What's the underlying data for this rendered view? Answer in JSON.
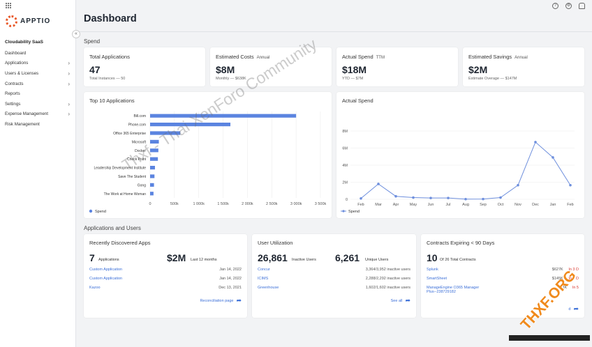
{
  "brand": {
    "name": "APPTIO",
    "workspace": "Cloudability SaaS"
  },
  "sidebar": {
    "items": [
      {
        "label": "Dashboard",
        "active": true,
        "chevron": false
      },
      {
        "label": "Applications",
        "chevron": true
      },
      {
        "label": "Users & Licenses",
        "chevron": true
      },
      {
        "label": "Contracts",
        "chevron": true
      },
      {
        "label": "Reports",
        "chevron": false
      },
      {
        "label": "Settings",
        "chevron": true
      },
      {
        "label": "Expense Management",
        "chevron": true
      },
      {
        "label": "Risk Management",
        "chevron": false
      }
    ]
  },
  "header": {
    "title": "Dashboard",
    "icons": [
      "help-icon",
      "settings-icon",
      "user-icon"
    ]
  },
  "spend": {
    "section_title": "Spend",
    "kpis": [
      {
        "title": "Total Applications",
        "tag": "",
        "value": "47",
        "sub": "Total Instances — 50"
      },
      {
        "title": "Estimated Costs",
        "tag": "Annual",
        "value": "$8M",
        "sub": "Monthly — $638K"
      },
      {
        "title": "Actual Spend",
        "tag": "TTM",
        "value": "$18M",
        "sub": "YTD — $7M"
      },
      {
        "title": "Estimated Savings",
        "tag": "Annual",
        "value": "$2M",
        "sub": "Estimate Overage — $147M"
      }
    ]
  },
  "top10": {
    "title": "Top 10 Applications",
    "legend": "Spend"
  },
  "actual_spend": {
    "title": "Actual Spend",
    "legend": "Spend"
  },
  "chart_data": [
    {
      "type": "bar",
      "orientation": "horizontal",
      "title": "Top 10 Applications",
      "categories": [
        "Bill.com",
        "Phone.com",
        "Office 365 Enterprise",
        "Microsoft",
        "Docker",
        "Check Point",
        "Leadership Development Institute",
        "Save The Student",
        "Gong",
        "The Work at Home Woman"
      ],
      "series": [
        {
          "name": "Spend",
          "values": [
            3000000,
            1650000,
            620000,
            180000,
            170000,
            160000,
            100000,
            90000,
            80000,
            70000
          ]
        }
      ],
      "xlim": [
        0,
        3500000
      ],
      "xticks": [
        "0",
        "500k",
        "1 000k",
        "1 500k",
        "2 000k",
        "2 500k",
        "3 000k",
        "3 500k"
      ],
      "legend_position": "bottom-left",
      "grid": true
    },
    {
      "type": "line",
      "title": "Actual Spend",
      "categories": [
        "Feb",
        "Mar",
        "Apr",
        "May",
        "Jun",
        "Jul",
        "Aug",
        "Sep",
        "Oct",
        "Nov",
        "Dec",
        "Jan",
        "Feb"
      ],
      "series": [
        {
          "name": "Spend",
          "values": [
            100000,
            1800000,
            350000,
            200000,
            150000,
            150000,
            20000,
            30000,
            200000,
            1650000,
            6700000,
            4900000,
            1650000
          ]
        }
      ],
      "ylim": [
        0,
        8000000
      ],
      "yticks": [
        "0",
        "2M",
        "4M",
        "6M",
        "8M"
      ],
      "legend_position": "bottom-left",
      "grid": true
    }
  ],
  "apps_users": {
    "section_title": "Applications and Users"
  },
  "recent_apps": {
    "title": "Recently Discovered Apps",
    "count": "7",
    "count_label": "Applications",
    "amount": "$2M",
    "amount_label": "Last 12 months",
    "rows": [
      {
        "name": "Custom Application",
        "date": "Jan 14, 2022"
      },
      {
        "name": "Custom Application",
        "date": "Jan 14, 2022"
      },
      {
        "name": "Kazoo",
        "date": "Dec 13, 2021"
      }
    ],
    "link": "Reconciliation page"
  },
  "user_util": {
    "title": "User Utilization",
    "inactive": "26,861",
    "inactive_label": "Inactive Users",
    "unique": "6,261",
    "unique_label": "Unique Users",
    "rows": [
      {
        "name": "Concur",
        "value": "3,364/3,952 inactive users"
      },
      {
        "name": "ICIMS",
        "value": "2,288/2,292 inactive users"
      },
      {
        "name": "Greenhouse",
        "value": "1,602/1,602 inactive users"
      }
    ],
    "link": "See all"
  },
  "contracts": {
    "title": "Contracts Expiring < 90 Days",
    "count": "10",
    "count_label": "Of 26 Total Contracts",
    "rows": [
      {
        "name": "Splunk",
        "value": "$627K",
        "due": "In 3 D"
      },
      {
        "name": "SmartSheet",
        "value": "$145K",
        "due": "In 3 D"
      },
      {
        "name": "ManageEngine O365 Manager Plus--238729182",
        "value": "$3K",
        "due": "In 5"
      }
    ],
    "link": "d"
  },
  "watermarks": {
    "community": "Thxf - Thai XenForo Community",
    "logo": "THXF.ORG"
  },
  "colors": {
    "accent": "#3f6fd8",
    "bar": "#5b84e0",
    "alert": "#d9342b",
    "brand": "#e8592a"
  }
}
